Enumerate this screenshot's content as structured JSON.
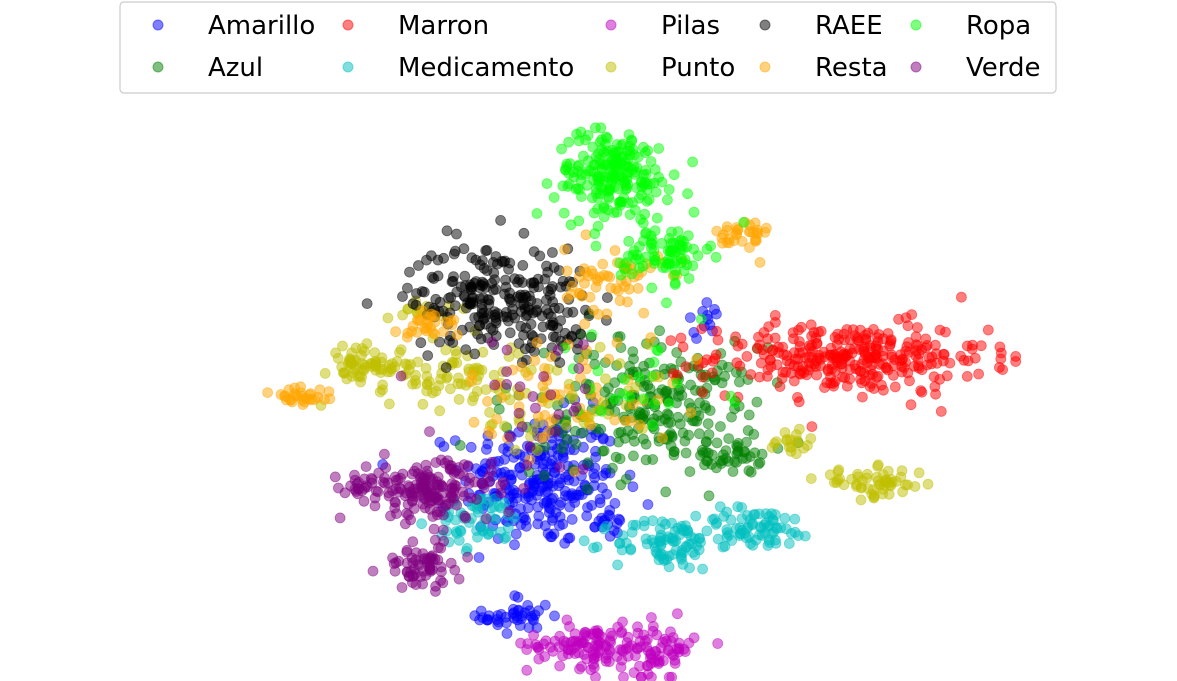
{
  "chart_data": {
    "type": "scatter",
    "title": "",
    "xlabel": "",
    "ylabel": "",
    "xlim": [
      0,
      100
    ],
    "ylim": [
      0,
      100
    ],
    "axes_visible": false,
    "grid": false,
    "legend": {
      "placement": "top-center",
      "columns": 5
    },
    "series": [
      {
        "name": "Amarillo",
        "color": "#0000ff",
        "clusters": [
          {
            "cx": 44.5,
            "cy": 36,
            "sx": 4.5,
            "sy": 6,
            "n": 260
          },
          {
            "cx": 42,
            "cy": 11.5,
            "sx": 2,
            "sy": 2,
            "n": 40
          },
          {
            "cx": 63.5,
            "cy": 65,
            "sx": 1.2,
            "sy": 1.5,
            "n": 12
          },
          {
            "cx": 52.5,
            "cy": 29,
            "sx": 1.2,
            "sy": 2,
            "n": 18
          }
        ]
      },
      {
        "name": "Azul",
        "color": "#008000",
        "clusters": [
          {
            "cx": 59,
            "cy": 49,
            "sx": 5.5,
            "sy": 5.5,
            "n": 210
          },
          {
            "cx": 66,
            "cy": 40,
            "sx": 2,
            "sy": 1.3,
            "n": 35
          },
          {
            "cx": 49,
            "cy": 50,
            "sx": 6,
            "sy": 8,
            "n": 35
          }
        ]
      },
      {
        "name": "Marron",
        "color": "#ff0000",
        "clusters": [
          {
            "cx": 80,
            "cy": 58,
            "sx": 8,
            "sy": 3.2,
            "n": 310
          }
        ]
      },
      {
        "name": "Medicamento",
        "color": "#00bfbf",
        "clusters": [
          {
            "cx": 59,
            "cy": 24.5,
            "sx": 3,
            "sy": 2.4,
            "n": 85
          },
          {
            "cx": 69.5,
            "cy": 27.5,
            "sx": 3.5,
            "sy": 1.8,
            "n": 75
          },
          {
            "cx": 37.5,
            "cy": 28.5,
            "sx": 2.5,
            "sy": 2.5,
            "n": 55
          }
        ]
      },
      {
        "name": "Pilas",
        "color": "#bf00bf",
        "clusters": [
          {
            "cx": 49.5,
            "cy": 6.5,
            "sx": 3.2,
            "sy": 2,
            "n": 95
          },
          {
            "cx": 58,
            "cy": 5.5,
            "sx": 2.2,
            "sy": 2.5,
            "n": 75
          }
        ]
      },
      {
        "name": "Punto",
        "color": "#bfbf00",
        "clusters": [
          {
            "cx": 24,
            "cy": 57,
            "sx": 2.2,
            "sy": 1.5,
            "n": 55
          },
          {
            "cx": 83,
            "cy": 35.5,
            "sx": 3.2,
            "sy": 1.3,
            "n": 55
          },
          {
            "cx": 73.5,
            "cy": 42.5,
            "sx": 1.3,
            "sy": 1.5,
            "n": 18
          },
          {
            "cx": 34,
            "cy": 55,
            "sx": 5,
            "sy": 3,
            "n": 85
          },
          {
            "cx": 30.5,
            "cy": 67,
            "sx": 1.8,
            "sy": 1.2,
            "n": 14
          },
          {
            "cx": 48,
            "cy": 48,
            "sx": 6,
            "sy": 5,
            "n": 40
          }
        ]
      },
      {
        "name": "RAEE",
        "color": "#000000",
        "clusters": [
          {
            "cx": 39.5,
            "cy": 69,
            "sx": 5,
            "sy": 4.8,
            "n": 230
          },
          {
            "cx": 46,
            "cy": 63,
            "sx": 2,
            "sy": 2,
            "n": 20
          }
        ]
      },
      {
        "name": "Resta",
        "color": "#ffa500",
        "clusters": [
          {
            "cx": 17,
            "cy": 51,
            "sx": 2,
            "sy": 1.2,
            "n": 30
          },
          {
            "cx": 68,
            "cy": 80,
            "sx": 1.5,
            "sy": 1.8,
            "n": 32
          },
          {
            "cx": 53,
            "cy": 72,
            "sx": 2.8,
            "sy": 3,
            "n": 60
          },
          {
            "cx": 32,
            "cy": 64,
            "sx": 1.8,
            "sy": 1.5,
            "n": 28
          },
          {
            "cx": 48,
            "cy": 52,
            "sx": 6,
            "sy": 5,
            "n": 65
          }
        ]
      },
      {
        "name": "Ropa",
        "color": "#00ff00",
        "clusters": [
          {
            "cx": 53,
            "cy": 91,
            "sx": 3.3,
            "sy": 4,
            "n": 210
          },
          {
            "cx": 59,
            "cy": 77,
            "sx": 2.5,
            "sy": 2.5,
            "n": 80
          },
          {
            "cx": 55,
            "cy": 54,
            "sx": 6,
            "sy": 5,
            "n": 25
          }
        ]
      },
      {
        "name": "Verde",
        "color": "#800080",
        "clusters": [
          {
            "cx": 32,
            "cy": 34,
            "sx": 3.5,
            "sy": 2.8,
            "n": 160
          },
          {
            "cx": 31,
            "cy": 20.5,
            "sx": 2.3,
            "sy": 2.2,
            "n": 65
          },
          {
            "cx": 24.5,
            "cy": 35,
            "sx": 1.8,
            "sy": 0.9,
            "n": 30
          },
          {
            "cx": 45,
            "cy": 50,
            "sx": 6,
            "sy": 6,
            "n": 28
          }
        ]
      }
    ],
    "marker": {
      "shape": "circle",
      "alpha": 0.5
    }
  }
}
